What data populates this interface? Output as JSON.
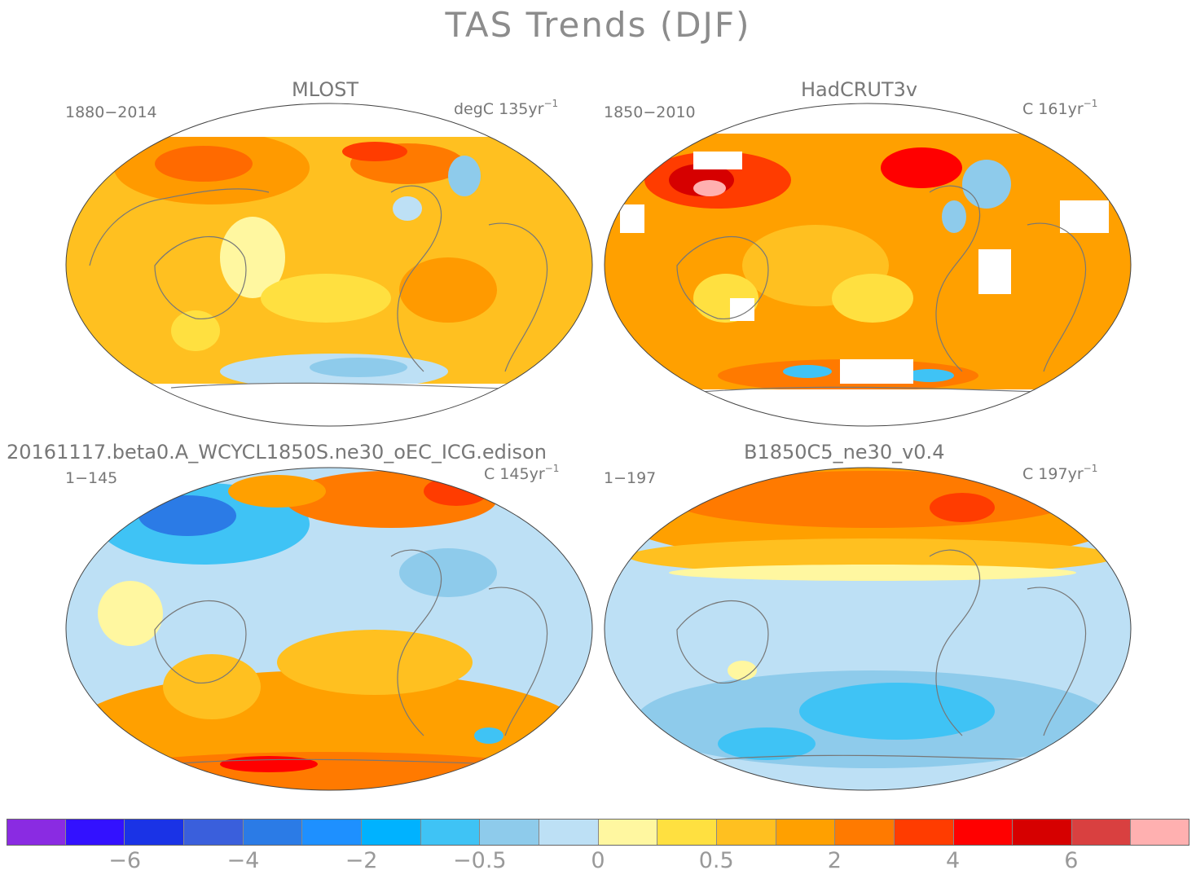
{
  "title": "TAS Trends (DJF)",
  "panels": [
    {
      "title": "MLOST",
      "period": "1880−2014",
      "unit_prefix": "degC 135yr",
      "unit_exp": "−1"
    },
    {
      "title": "HadCRUT3v",
      "period": "1850−2010",
      "unit_prefix": "C 161yr",
      "unit_exp": "−1"
    },
    {
      "title": "20161117.beta0.A_WCYCL1850S.ne30_oEC_ICG.edison",
      "period": "1−145",
      "unit_prefix": "C 145yr",
      "unit_exp": "−1"
    },
    {
      "title": "B1850C5_ne30_v0.4",
      "period": "1−197",
      "unit_prefix": "C 197yr",
      "unit_exp": "−1"
    }
  ],
  "colorbar": {
    "colors": [
      "#8a2be2",
      "#3311ff",
      "#1a33e6",
      "#3a5fdc",
      "#2b7be6",
      "#1e90ff",
      "#00b2ff",
      "#3fc3f5",
      "#8ecbeb",
      "#bde0f5",
      "#fff7a0",
      "#ffe040",
      "#ffc020",
      "#ffa000",
      "#ff7a00",
      "#ff3c00",
      "#ff0000",
      "#d60000",
      "#d94040",
      "#ffb0b0"
    ],
    "labels": [
      "−6",
      "−4",
      "−2",
      "−0.5",
      "0",
      "0.5",
      "2",
      "4",
      "6"
    ]
  }
}
